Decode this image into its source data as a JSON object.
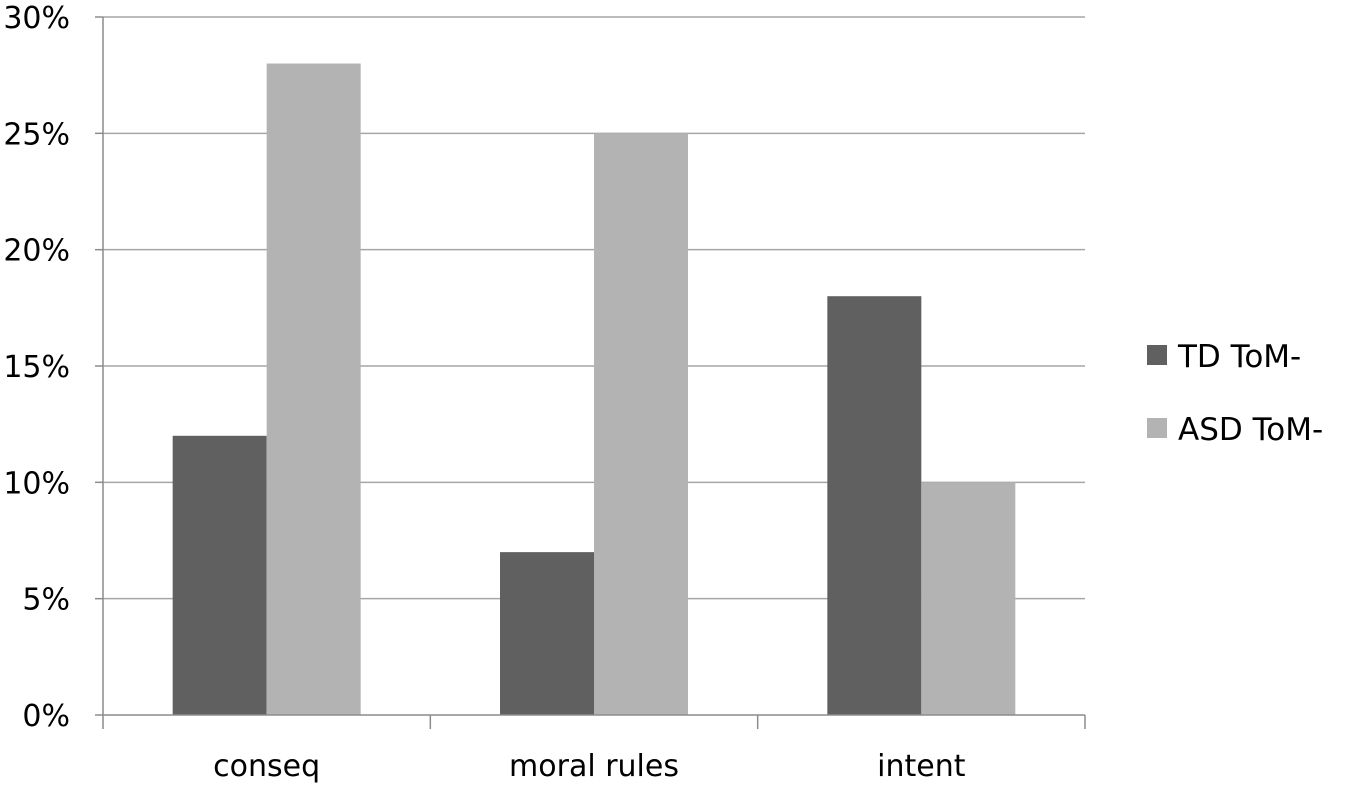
{
  "chart_data": {
    "type": "bar",
    "title": "",
    "xlabel": "",
    "ylabel": "",
    "categories": [
      "conseq",
      "moral rules",
      "intent"
    ],
    "series": [
      {
        "name": "TD ToM-",
        "values": [
          12,
          7,
          18
        ],
        "color": "#606060"
      },
      {
        "name": "ASD ToM-",
        "values": [
          28,
          25,
          10
        ],
        "color": "#b3b3b3"
      }
    ],
    "ylim": [
      0,
      30
    ],
    "yticks": [
      0,
      5,
      10,
      15,
      20,
      25,
      30
    ],
    "ytick_labels": [
      "0%",
      "5%",
      "10%",
      "15%",
      "20%",
      "25%",
      "30%"
    ],
    "grid": true,
    "gridline_color": "#a6a6a6",
    "axis_color": "#8c8c8c",
    "legend_position": "right"
  }
}
